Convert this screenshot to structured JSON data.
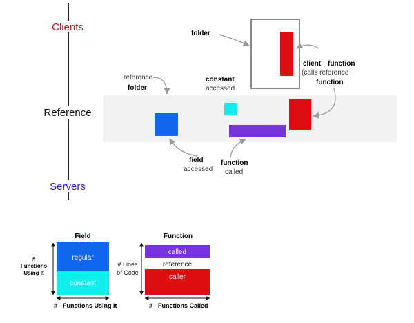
{
  "tiers": {
    "clients": "Clients",
    "reference": "Reference",
    "servers": "Servers"
  },
  "callouts": {
    "folder": "folder",
    "reference_folder_line1": "reference",
    "reference_folder_line2": "folder",
    "constant_accessed_line1": "constant",
    "constant_accessed_line2": "accessed",
    "client_function_client": "client",
    "client_function_function": "function",
    "client_function_calls": "(calls reference",
    "client_function_function2": "function",
    "field_accessed_line1": "field",
    "field_accessed_line2": "accessed",
    "function_called_line1": "function",
    "function_called_line2": "called"
  },
  "legend_field": {
    "title": "Field",
    "regular": "regular",
    "constant": "constant",
    "y_axis_hash": "#",
    "y_axis_line1": "Functions",
    "y_axis_line2": "Using It",
    "x_axis_hash": "#",
    "x_axis_label": "Functions Using It"
  },
  "legend_function": {
    "title": "Function",
    "called": "called",
    "reference": "reference",
    "caller": "caller",
    "y_axis_line1": "# Lines",
    "y_axis_line2": "of Code",
    "x_axis_hash": "#",
    "x_axis_label": "Functions Called"
  },
  "colors": {
    "client_red": "#dd0d12",
    "field_blue": "#1166ee",
    "constant_cyan": "#11eeee",
    "function_purple": "#7733dd",
    "reference_band": "#f2f2f2",
    "clients_label": "#cc1122",
    "servers_label": "#3322cc"
  }
}
